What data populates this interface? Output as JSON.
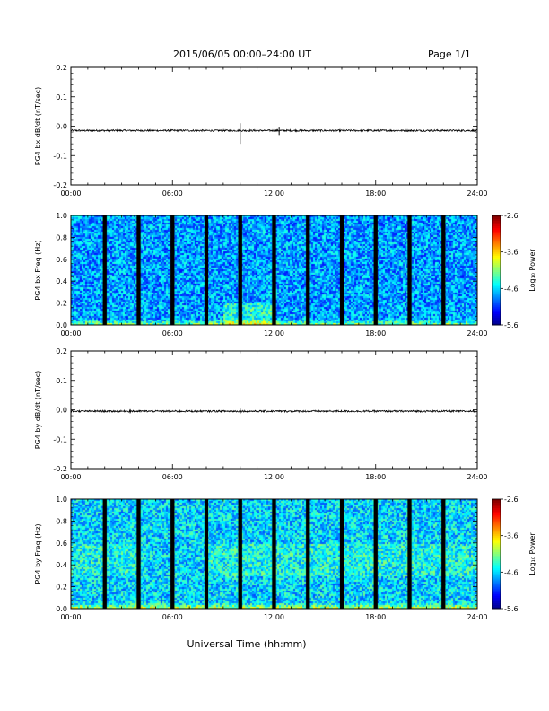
{
  "header": {
    "title": "2015/06/05  00:00–24:00 UT",
    "page": "Page 1/1"
  },
  "xaxis_label": "Universal Time (hh:mm)",
  "colorbar": {
    "ticks": [
      "-2.6",
      "-3.6",
      "-4.6",
      "-5.6"
    ],
    "label": "Log₁₀ Power",
    "range": [
      -5.6,
      -2.6
    ]
  },
  "chart_data": [
    {
      "type": "line",
      "ylabel": "PG4 bx dB/dt (nT/sec)",
      "xlim": [
        0,
        24
      ],
      "ylim": [
        -0.2,
        0.2
      ],
      "xticks": [
        "00:00",
        "06:00",
        "12:00",
        "18:00",
        "24:00"
      ],
      "yticks": [
        "0.2",
        "0.1",
        "0.0",
        "-0.1",
        "-0.2"
      ],
      "baseline": -0.015,
      "spikes": [
        {
          "x": 10.0,
          "y_max": 0.01,
          "y_min": -0.06
        },
        {
          "x": 12.3,
          "y_max": -0.005,
          "y_min": -0.03
        }
      ]
    },
    {
      "type": "heatmap",
      "ylabel": "PG4 bx Freq (Hz)",
      "xlim": [
        0,
        24
      ],
      "ylim": [
        0,
        1
      ],
      "xticks": [
        "00:00",
        "06:00",
        "12:00",
        "18:00",
        "24:00"
      ],
      "yticks": [
        "1.0",
        "0.8",
        "0.6",
        "0.4",
        "0.2",
        "0.0"
      ],
      "gaps_hours": [
        2,
        4,
        6,
        8,
        10,
        12,
        14,
        16,
        18,
        20,
        22
      ]
    },
    {
      "type": "line",
      "ylabel": "PG4 by dB/dt (nT/sec)",
      "xlim": [
        0,
        24
      ],
      "ylim": [
        -0.2,
        0.2
      ],
      "xticks": [
        "00:00",
        "06:00",
        "12:00",
        "18:00",
        "24:00"
      ],
      "yticks": [
        "0.2",
        "0.1",
        "0.0",
        "-0.1",
        "-0.2"
      ],
      "baseline": -0.005,
      "spikes": [
        {
          "x": 3.5,
          "y_max": 0.002,
          "y_min": -0.012
        },
        {
          "x": 10.0,
          "y_max": 0.004,
          "y_min": -0.014
        }
      ]
    },
    {
      "type": "heatmap",
      "ylabel": "PG4 by Freq (Hz)",
      "xlim": [
        0,
        24
      ],
      "ylim": [
        0,
        1
      ],
      "xticks": [
        "00:00",
        "06:00",
        "12:00",
        "18:00",
        "24:00"
      ],
      "yticks": [
        "1.0",
        "0.8",
        "0.6",
        "0.4",
        "0.2",
        "0.0"
      ],
      "gaps_hours": [
        2,
        4,
        6,
        8,
        10,
        12,
        14,
        16,
        18,
        20,
        22
      ]
    }
  ]
}
